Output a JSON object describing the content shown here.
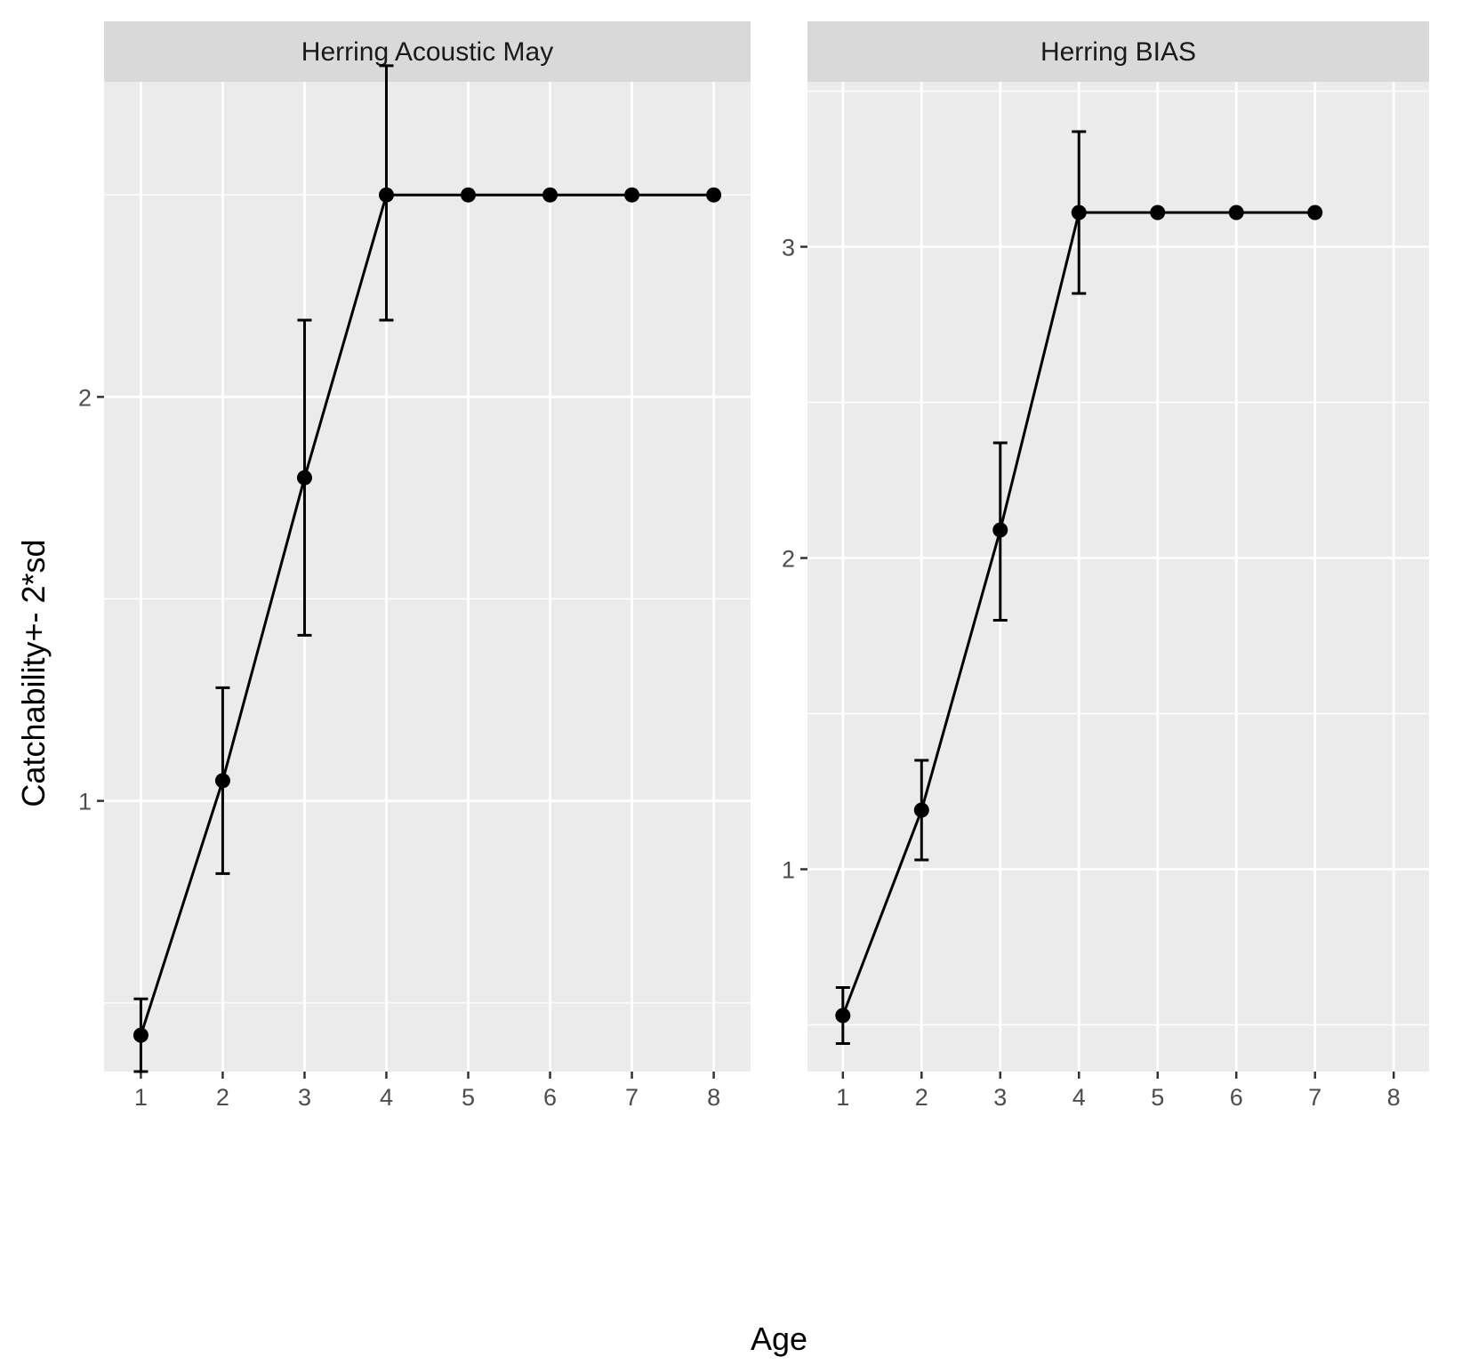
{
  "chart_data": {
    "type": "line",
    "facets": true,
    "xlabel": "Age",
    "ylabel": "Catchability+- 2*sd",
    "x_ticks": [
      1,
      2,
      3,
      4,
      5,
      6,
      7,
      8
    ],
    "panels": [
      {
        "title": "Herring Acoustic May",
        "xlim": [
          0.55,
          8.45
        ],
        "ylim": [
          0.33,
          2.78
        ],
        "y_ticks": [
          1,
          2
        ],
        "x": [
          1,
          2,
          3,
          4,
          5,
          6,
          7,
          8
        ],
        "y": [
          0.42,
          1.05,
          1.8,
          2.5,
          2.5,
          2.5,
          2.5,
          2.5
        ],
        "lower": [
          0.33,
          0.82,
          1.41,
          2.19,
          null,
          null,
          null,
          null
        ],
        "upper": [
          0.51,
          1.28,
          2.19,
          2.82,
          null,
          null,
          null,
          null
        ]
      },
      {
        "title": "Herring BIAS",
        "xlim": [
          0.55,
          8.45
        ],
        "ylim": [
          0.35,
          3.53
        ],
        "y_ticks": [
          1,
          2,
          3
        ],
        "x": [
          1,
          2,
          3,
          4,
          5,
          6,
          7
        ],
        "y": [
          0.53,
          1.19,
          2.09,
          3.11,
          3.11,
          3.11,
          3.11
        ],
        "lower": [
          0.44,
          1.03,
          1.8,
          2.85,
          null,
          null,
          null
        ],
        "upper": [
          0.62,
          1.35,
          2.37,
          3.37,
          null,
          null,
          null
        ]
      }
    ],
    "grid": true,
    "legend": "none"
  }
}
